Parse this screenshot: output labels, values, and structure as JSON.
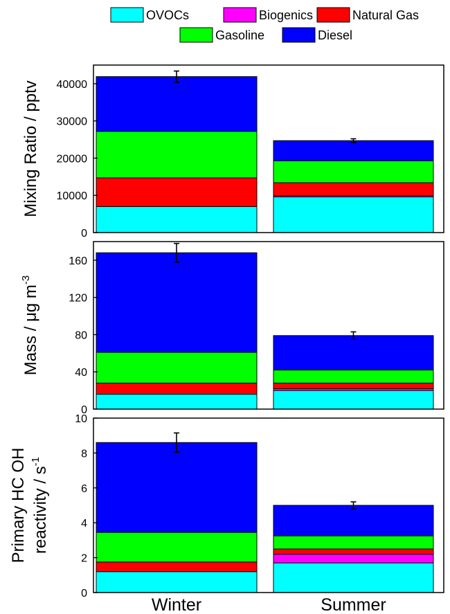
{
  "chart_data": {
    "type": "bar",
    "stacked": true,
    "categories": [
      "Winter",
      "Summer"
    ],
    "legend": {
      "placement": "top",
      "items": [
        {
          "name": "OVOCs",
          "color": "#00ffff"
        },
        {
          "name": "Biogenics",
          "color": "#ff00ff"
        },
        {
          "name": "Natural Gas",
          "color": "#ff0000"
        },
        {
          "name": "Gasoline",
          "color": "#00ff00"
        },
        {
          "name": "Diesel",
          "color": "#0000ff"
        }
      ]
    },
    "panels": [
      {
        "ylabel": "Mixing Ratio / pptv",
        "ylim": [
          0,
          45000
        ],
        "yticks": [
          0,
          10000,
          20000,
          30000,
          40000
        ],
        "series": [
          {
            "name": "OVOCs",
            "values": [
              7000,
              9600
            ]
          },
          {
            "name": "Biogenics",
            "values": [
              0,
              300
            ]
          },
          {
            "name": "Natural Gas",
            "values": [
              7700,
              3500
            ]
          },
          {
            "name": "Gasoline",
            "values": [
              12500,
              5900
            ]
          },
          {
            "name": "Diesel",
            "values": [
              14700,
              5400
            ]
          }
        ],
        "errors": [
          1500,
          500
        ]
      },
      {
        "ylabel_parts": {
          "main": "Mass / μg m",
          "sup": "-3"
        },
        "ylim": [
          0,
          180
        ],
        "yticks": [
          0,
          40,
          80,
          120,
          160
        ],
        "series": [
          {
            "name": "OVOCs",
            "values": [
              16,
              20
            ]
          },
          {
            "name": "Biogenics",
            "values": [
              0,
              2
            ]
          },
          {
            "name": "Natural Gas",
            "values": [
              12,
              6
            ]
          },
          {
            "name": "Gasoline",
            "values": [
              33,
              14
            ]
          },
          {
            "name": "Diesel",
            "values": [
              107,
              37
            ]
          }
        ],
        "errors": [
          10,
          4
        ]
      },
      {
        "ylabel_line1": "Primary HC OH",
        "ylabel_line2_parts": {
          "main": "reactivity / s",
          "sup": "-1"
        },
        "ylim": [
          0,
          10
        ],
        "yticks": [
          0,
          2,
          4,
          6,
          8,
          10
        ],
        "series": [
          {
            "name": "OVOCs",
            "values": [
              1.2,
              1.7
            ]
          },
          {
            "name": "Biogenics",
            "values": [
              0.0,
              0.5
            ]
          },
          {
            "name": "Natural Gas",
            "values": [
              0.55,
              0.3
            ]
          },
          {
            "name": "Gasoline",
            "values": [
              1.7,
              0.75
            ]
          },
          {
            "name": "Diesel",
            "values": [
              5.15,
              1.75
            ]
          }
        ],
        "errors": [
          0.55,
          0.2
        ]
      }
    ]
  }
}
